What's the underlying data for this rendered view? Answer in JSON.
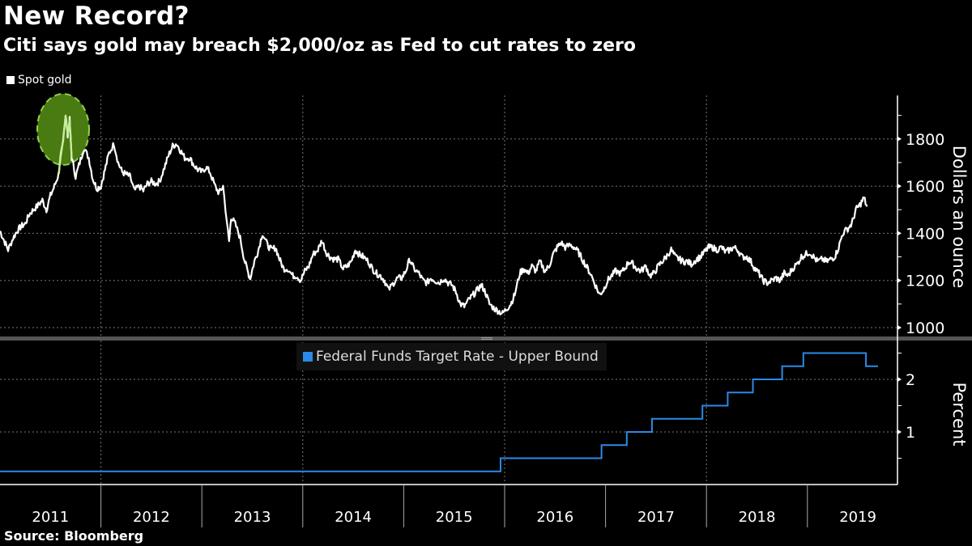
{
  "title": "New Record?",
  "subtitle": "Citi says gold may breach $2,000/oz as Fed to cut rates to zero",
  "source": "Source: Bloomberg",
  "colors": {
    "gold_line": "#ffffff",
    "fed_line": "#2b8ae6",
    "highlight": "#4a7a12",
    "highlight_border": "#8fd14f"
  },
  "chart_data": [
    {
      "type": "line",
      "title": "Spot gold",
      "legend": [
        "Spot gold"
      ],
      "legend_position": "top-left",
      "ylabel": "Dollars an ounce",
      "ylim": [
        960,
        1960
      ],
      "yticks": [
        1000,
        1200,
        1400,
        1600,
        1800
      ],
      "xlim": [
        2011.0,
        2019.9
      ],
      "grid": true,
      "annotation": "highlighted ellipse around 2011 peak (~$1,900)",
      "x": [
        2011.0,
        2011.04,
        2011.08,
        2011.13,
        2011.17,
        2011.21,
        2011.25,
        2011.29,
        2011.33,
        2011.38,
        2011.42,
        2011.46,
        2011.5,
        2011.54,
        2011.58,
        2011.6,
        2011.62,
        2011.65,
        2011.67,
        2011.69,
        2011.71,
        2011.75,
        2011.79,
        2011.83,
        2011.88,
        2011.92,
        2011.96,
        2012.0,
        2012.04,
        2012.08,
        2012.13,
        2012.17,
        2012.21,
        2012.25,
        2012.29,
        2012.33,
        2012.38,
        2012.42,
        2012.46,
        2012.5,
        2012.54,
        2012.58,
        2012.63,
        2012.67,
        2012.71,
        2012.75,
        2012.79,
        2012.83,
        2012.88,
        2012.92,
        2012.96,
        2013.0,
        2013.04,
        2013.08,
        2013.13,
        2013.17,
        2013.21,
        2013.27,
        2013.29,
        2013.33,
        2013.38,
        2013.42,
        2013.46,
        2013.48,
        2013.52,
        2013.56,
        2013.6,
        2013.65,
        2013.69,
        2013.73,
        2013.77,
        2013.81,
        2013.85,
        2013.9,
        2013.94,
        2013.98,
        2014.02,
        2014.06,
        2014.1,
        2014.15,
        2014.19,
        2014.23,
        2014.27,
        2014.31,
        2014.35,
        2014.4,
        2014.44,
        2014.48,
        2014.52,
        2014.56,
        2014.6,
        2014.65,
        2014.69,
        2014.73,
        2014.77,
        2014.81,
        2014.85,
        2014.9,
        2014.94,
        2014.98,
        2015.02,
        2015.06,
        2015.1,
        2015.15,
        2015.19,
        2015.23,
        2015.27,
        2015.31,
        2015.35,
        2015.4,
        2015.44,
        2015.48,
        2015.52,
        2015.56,
        2015.6,
        2015.65,
        2015.69,
        2015.73,
        2015.77,
        2015.81,
        2015.85,
        2015.9,
        2015.94,
        2015.98,
        2016.02,
        2016.06,
        2016.1,
        2016.15,
        2016.19,
        2016.23,
        2016.27,
        2016.31,
        2016.35,
        2016.4,
        2016.44,
        2016.48,
        2016.52,
        2016.56,
        2016.6,
        2016.65,
        2016.69,
        2016.73,
        2016.77,
        2016.81,
        2016.85,
        2016.9,
        2016.94,
        2016.98,
        2017.02,
        2017.06,
        2017.1,
        2017.15,
        2017.19,
        2017.23,
        2017.27,
        2017.31,
        2017.35,
        2017.4,
        2017.44,
        2017.48,
        2017.52,
        2017.56,
        2017.6,
        2017.65,
        2017.69,
        2017.73,
        2017.77,
        2017.81,
        2017.85,
        2017.9,
        2017.94,
        2017.98,
        2018.02,
        2018.06,
        2018.1,
        2018.15,
        2018.19,
        2018.23,
        2018.27,
        2018.31,
        2018.35,
        2018.4,
        2018.44,
        2018.48,
        2018.52,
        2018.56,
        2018.6,
        2018.65,
        2018.69,
        2018.73,
        2018.77,
        2018.81,
        2018.85,
        2018.9,
        2018.94,
        2018.98,
        2019.02,
        2019.06,
        2019.1,
        2019.15,
        2019.19,
        2019.23,
        2019.27,
        2019.31,
        2019.35,
        2019.4,
        2019.44,
        2019.48,
        2019.52,
        2019.56,
        2019.6,
        2019.63,
        2019.65,
        2019.67,
        2019.69
      ],
      "series": [
        {
          "name": "Spot gold",
          "values": [
            1410,
            1370,
            1330,
            1380,
            1410,
            1430,
            1440,
            1480,
            1500,
            1520,
            1540,
            1500,
            1560,
            1600,
            1650,
            1720,
            1780,
            1900,
            1820,
            1880,
            1720,
            1640,
            1700,
            1760,
            1720,
            1630,
            1590,
            1600,
            1670,
            1740,
            1780,
            1700,
            1660,
            1650,
            1640,
            1580,
            1600,
            1580,
            1610,
            1620,
            1610,
            1620,
            1680,
            1730,
            1770,
            1780,
            1750,
            1720,
            1720,
            1690,
            1670,
            1660,
            1680,
            1660,
            1600,
            1570,
            1600,
            1360,
            1470,
            1440,
            1380,
            1290,
            1230,
            1210,
            1280,
            1330,
            1400,
            1350,
            1330,
            1340,
            1290,
            1250,
            1250,
            1220,
            1220,
            1200,
            1240,
            1260,
            1310,
            1330,
            1370,
            1320,
            1300,
            1290,
            1290,
            1250,
            1260,
            1280,
            1330,
            1310,
            1300,
            1280,
            1250,
            1230,
            1220,
            1200,
            1160,
            1190,
            1210,
            1210,
            1240,
            1290,
            1250,
            1230,
            1200,
            1190,
            1210,
            1200,
            1190,
            1210,
            1190,
            1180,
            1150,
            1100,
            1090,
            1120,
            1140,
            1160,
            1180,
            1150,
            1100,
            1080,
            1070,
            1060,
            1080,
            1100,
            1140,
            1230,
            1250,
            1230,
            1260,
            1240,
            1280,
            1240,
            1260,
            1310,
            1340,
            1360,
            1340,
            1350,
            1340,
            1320,
            1290,
            1260,
            1230,
            1180,
            1140,
            1160,
            1200,
            1220,
            1240,
            1230,
            1250,
            1280,
            1270,
            1250,
            1240,
            1260,
            1220,
            1230,
            1260,
            1280,
            1300,
            1330,
            1300,
            1290,
            1280,
            1280,
            1270,
            1290,
            1300,
            1320,
            1340,
            1340,
            1330,
            1340,
            1320,
            1330,
            1340,
            1330,
            1300,
            1300,
            1280,
            1250,
            1230,
            1200,
            1190,
            1200,
            1210,
            1200,
            1230,
            1220,
            1250,
            1270,
            1300,
            1310,
            1320,
            1300,
            1280,
            1290,
            1280,
            1290,
            1300,
            1340,
            1400,
            1420,
            1440,
            1500,
            1520,
            1550,
            1500
          ]
        }
      ]
    },
    {
      "type": "line",
      "step": true,
      "title": "Federal Funds Target Rate - Upper Bound",
      "legend": [
        "Federal Funds Target Rate - Upper Bound"
      ],
      "legend_position": "top-center",
      "ylabel": "Percent",
      "ylim": [
        0,
        2.65
      ],
      "yticks": [
        1,
        2
      ],
      "xlim": [
        2011.0,
        2019.9
      ],
      "grid": true,
      "x": [
        2011.0,
        2015.96,
        2016.96,
        2017.21,
        2017.46,
        2017.96,
        2018.21,
        2018.46,
        2018.75,
        2018.96,
        2019.58,
        2019.7
      ],
      "series": [
        {
          "name": "Federal Funds Target Rate - Upper Bound",
          "values": [
            0.25,
            0.5,
            0.75,
            1.0,
            1.25,
            1.5,
            1.75,
            2.0,
            2.25,
            2.5,
            2.25,
            2.25
          ]
        }
      ]
    }
  ],
  "x_axis": {
    "tick_labels": [
      "2011",
      "2012",
      "2013",
      "2014",
      "2015",
      "2016",
      "2017",
      "2018",
      "2019"
    ]
  }
}
